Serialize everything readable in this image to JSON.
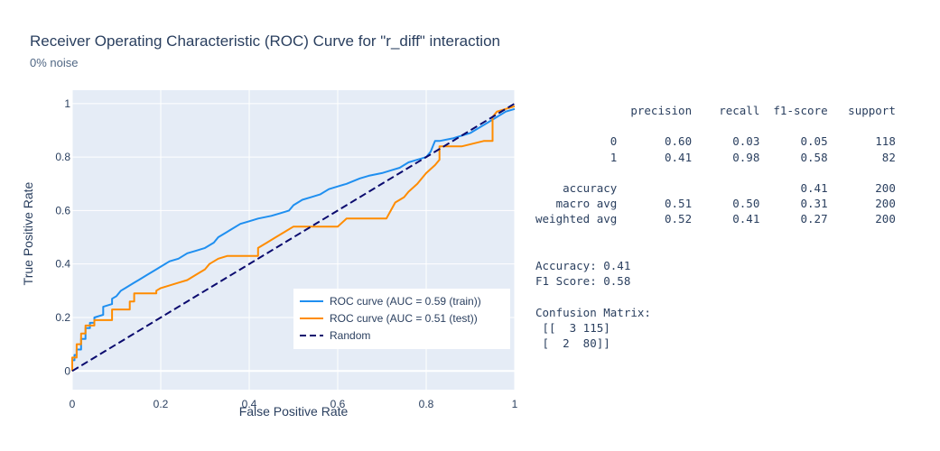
{
  "title": "Receiver Operating Characteristic (ROC) Curve for \"r_diff\" interaction",
  "subtitle": "0% noise",
  "chart_data": {
    "type": "line",
    "xlabel": "False Positive Rate",
    "ylabel": "True Positive Rate",
    "xlim": [
      0,
      1
    ],
    "ylim": [
      -0.07,
      1.05
    ],
    "xticks": [
      "0",
      "0.2",
      "0.4",
      "0.6",
      "0.8",
      "1"
    ],
    "yticks": [
      "0",
      "0.2",
      "0.4",
      "0.6",
      "0.8",
      "1"
    ],
    "grid": true,
    "legend_position": "bottom-right",
    "series": [
      {
        "name": "ROC curve (AUC = 0.59 (train))",
        "color": "#1f8ff0",
        "dash": "solid",
        "x": [
          0,
          0,
          0.005,
          0.005,
          0.01,
          0.01,
          0.02,
          0.02,
          0.03,
          0.03,
          0.04,
          0.04,
          0.05,
          0.05,
          0.07,
          0.07,
          0.09,
          0.09,
          0.1,
          0.11,
          0.12,
          0.13,
          0.14,
          0.15,
          0.17,
          0.19,
          0.2,
          0.22,
          0.24,
          0.26,
          0.28,
          0.3,
          0.32,
          0.33,
          0.35,
          0.36,
          0.38,
          0.4,
          0.42,
          0.45,
          0.47,
          0.49,
          0.5,
          0.52,
          0.54,
          0.56,
          0.58,
          0.6,
          0.62,
          0.65,
          0.67,
          0.7,
          0.72,
          0.74,
          0.76,
          0.78,
          0.8,
          0.81,
          0.815,
          0.82,
          0.83,
          0.86,
          0.88,
          0.9,
          0.92,
          0.94,
          0.96,
          0.98,
          1
        ],
        "y": [
          0,
          0.04,
          0.04,
          0.06,
          0.06,
          0.08,
          0.08,
          0.12,
          0.12,
          0.16,
          0.16,
          0.18,
          0.18,
          0.2,
          0.21,
          0.24,
          0.25,
          0.27,
          0.28,
          0.3,
          0.31,
          0.32,
          0.33,
          0.34,
          0.36,
          0.38,
          0.39,
          0.41,
          0.42,
          0.44,
          0.45,
          0.46,
          0.48,
          0.5,
          0.52,
          0.53,
          0.55,
          0.56,
          0.57,
          0.58,
          0.59,
          0.6,
          0.62,
          0.64,
          0.65,
          0.66,
          0.68,
          0.69,
          0.7,
          0.72,
          0.73,
          0.74,
          0.75,
          0.76,
          0.78,
          0.79,
          0.8,
          0.82,
          0.84,
          0.86,
          0.86,
          0.87,
          0.88,
          0.89,
          0.91,
          0.93,
          0.95,
          0.97,
          0.98
        ]
      },
      {
        "name": "ROC curve (AUC = 0.51 (test))",
        "color": "#ff8c00",
        "dash": "solid",
        "x": [
          0,
          0,
          0.01,
          0.01,
          0.02,
          0.02,
          0.03,
          0.03,
          0.05,
          0.05,
          0.09,
          0.09,
          0.13,
          0.13,
          0.14,
          0.14,
          0.19,
          0.19,
          0.2,
          0.24,
          0.26,
          0.28,
          0.3,
          0.31,
          0.33,
          0.35,
          0.42,
          0.42,
          0.44,
          0.46,
          0.48,
          0.5,
          0.6,
          0.62,
          0.65,
          0.71,
          0.72,
          0.73,
          0.75,
          0.76,
          0.78,
          0.79,
          0.8,
          0.82,
          0.83,
          0.83,
          0.84,
          0.88,
          0.93,
          0.95,
          0.95,
          0.96,
          1
        ],
        "y": [
          0,
          0.05,
          0.05,
          0.1,
          0.1,
          0.14,
          0.14,
          0.17,
          0.17,
          0.19,
          0.19,
          0.23,
          0.23,
          0.26,
          0.26,
          0.29,
          0.29,
          0.3,
          0.31,
          0.33,
          0.34,
          0.36,
          0.38,
          0.4,
          0.42,
          0.43,
          0.43,
          0.46,
          0.48,
          0.5,
          0.52,
          0.54,
          0.54,
          0.57,
          0.57,
          0.57,
          0.6,
          0.63,
          0.65,
          0.67,
          0.7,
          0.72,
          0.74,
          0.77,
          0.79,
          0.84,
          0.84,
          0.84,
          0.86,
          0.86,
          0.95,
          0.97,
          0.99
        ]
      },
      {
        "name": "Random",
        "color": "#0a0a6e",
        "dash": "dash",
        "x": [
          0,
          1
        ],
        "y": [
          0,
          1
        ]
      }
    ]
  },
  "report_lines": [
    "              precision    recall  f1-score   support",
    "",
    "           0       0.60      0.03      0.05       118",
    "           1       0.41      0.98      0.58        82",
    "",
    "    accuracy                           0.41       200",
    "   macro avg       0.51      0.50      0.31       200",
    "weighted avg       0.52      0.41      0.27       200",
    "",
    "",
    "Accuracy: 0.41",
    "F1 Score: 0.58",
    "",
    "Confusion Matrix:",
    " [[  3 115]",
    " [  2  80]]"
  ]
}
